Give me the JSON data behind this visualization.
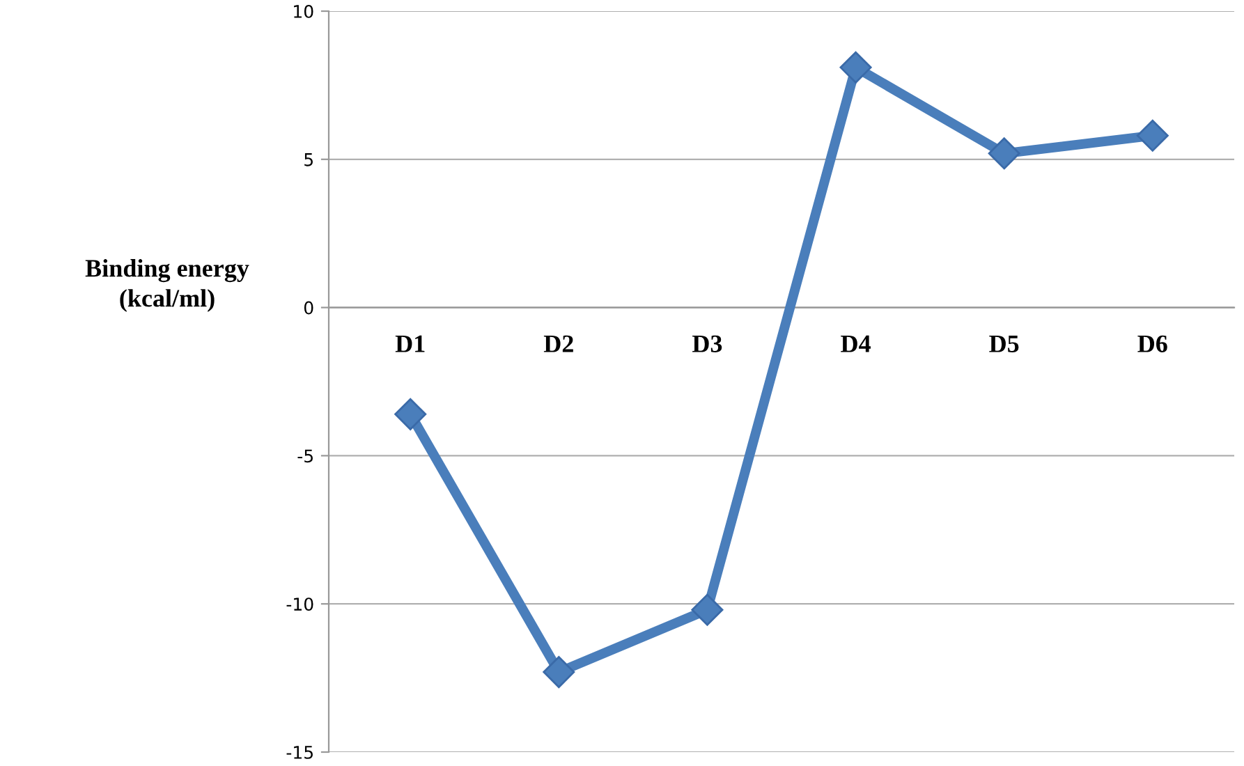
{
  "chart_data": {
    "type": "line",
    "ylabel": "Binding energy\n(kcal/ml)",
    "categories": [
      "D1",
      "D2",
      "D3",
      "D4",
      "D5",
      "D6"
    ],
    "series": [
      {
        "color": "#4a7ebb",
        "values": [
          -3.6,
          -12.3,
          -10.2,
          8.1,
          5.2,
          5.8
        ]
      }
    ],
    "ylim": [
      -15,
      10
    ],
    "yticks": [
      -15,
      -10,
      -5,
      0,
      5,
      10
    ],
    "grid": "y",
    "marker": "diamond",
    "line_style": "solid"
  }
}
